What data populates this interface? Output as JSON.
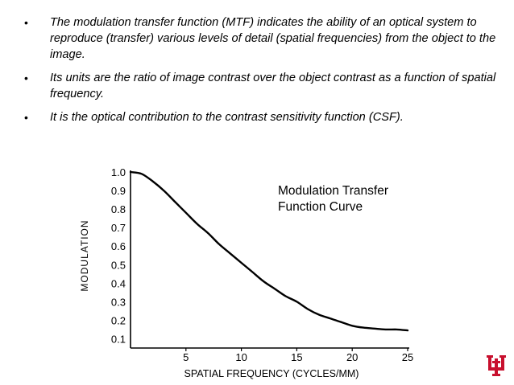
{
  "slide": {
    "bullets": [
      "The modulation transfer function (MTF) indicates the ability of an optical system to reproduce (transfer) various levels of detail (spatial frequencies) from the object to the image.",
      "Its units are the ratio of image contrast over the object contrast as a function of spatial frequency.",
      "It is the optical contribution to the contrast sensitivity function (CSF)."
    ],
    "bullet_symbol": "•",
    "logo_color": "#c8102e",
    "logo_icon": "university-logo-icon"
  },
  "chart_data": {
    "type": "line",
    "title_lines": [
      "Modulation Transfer",
      "Function Curve"
    ],
    "xlabel": "SPATIAL FREQUENCY (CYCLES/MM)",
    "ylabel": "MODULATION",
    "xlim": [
      0,
      25
    ],
    "ylim": [
      0.05,
      1.0
    ],
    "x_ticks": [
      5,
      10,
      15,
      20,
      25
    ],
    "y_ticks": [
      1.0,
      0.9,
      0.8,
      0.7,
      0.6,
      0.5,
      0.4,
      0.3,
      0.2,
      0.1
    ],
    "y_tick_labels": [
      "1.0",
      "0.9",
      "0.8",
      "0.7",
      "0.6",
      "0.5",
      "0.4",
      "0.3",
      "0.2",
      "0.1"
    ],
    "grid": false,
    "series": [
      {
        "x": [
          0,
          1,
          2,
          3,
          4,
          5,
          6,
          7,
          8,
          9,
          10,
          11,
          12,
          13,
          14,
          15,
          16,
          17,
          18,
          19,
          20,
          21,
          22,
          23,
          24,
          25
        ],
        "y": [
          1.0,
          0.99,
          0.95,
          0.9,
          0.84,
          0.78,
          0.72,
          0.67,
          0.61,
          0.56,
          0.51,
          0.46,
          0.41,
          0.37,
          0.33,
          0.3,
          0.26,
          0.23,
          0.21,
          0.19,
          0.17,
          0.16,
          0.155,
          0.15,
          0.15,
          0.145
        ]
      }
    ]
  }
}
